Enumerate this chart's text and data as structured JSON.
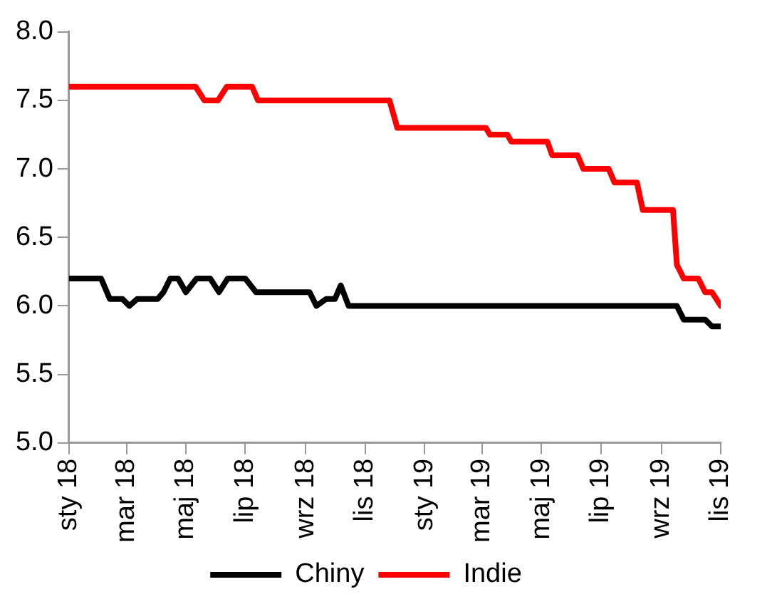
{
  "chart_data": {
    "type": "line",
    "xlim": [
      "2018-01-01",
      "2019-11-01"
    ],
    "xticks": [
      {
        "value": "2018-01-01",
        "label": "sty 18"
      },
      {
        "value": "2018-03-01",
        "label": "mar 18"
      },
      {
        "value": "2018-05-01",
        "label": "maj 18"
      },
      {
        "value": "2018-07-01",
        "label": "lip 18"
      },
      {
        "value": "2018-09-01",
        "label": "wrz 18"
      },
      {
        "value": "2018-11-01",
        "label": "lis 18"
      },
      {
        "value": "2019-01-01",
        "label": "sty 19"
      },
      {
        "value": "2019-03-01",
        "label": "mar 19"
      },
      {
        "value": "2019-05-01",
        "label": "maj 19"
      },
      {
        "value": "2019-07-01",
        "label": "lip 19"
      },
      {
        "value": "2019-09-01",
        "label": "wrz 19"
      },
      {
        "value": "2019-11-01",
        "label": "lis 19"
      }
    ],
    "ylim": [
      5,
      8
    ],
    "yticks": [
      {
        "value": 5,
        "label": "5.0"
      },
      {
        "value": 5.5,
        "label": "5.5"
      },
      {
        "value": 6,
        "label": "6.0"
      },
      {
        "value": 6.5,
        "label": "6.5"
      },
      {
        "value": 7,
        "label": "7.0"
      },
      {
        "value": 7.5,
        "label": "7.5"
      },
      {
        "value": 8,
        "label": "8.0"
      }
    ],
    "grid": false,
    "legend": "bottom",
    "marker": "none",
    "line_style": "solid",
    "series": [
      {
        "name": "Chiny",
        "color": "#000000",
        "x": [
          "2018-01-01",
          "2018-02-03",
          "2018-02-12",
          "2018-02-25",
          "2018-03-04",
          "2018-03-12",
          "2018-04-02",
          "2018-04-08",
          "2018-04-15",
          "2018-04-23",
          "2018-05-01",
          "2018-05-12",
          "2018-05-26",
          "2018-06-04",
          "2018-06-13",
          "2018-07-01",
          "2018-07-12",
          "2018-09-05",
          "2018-09-12",
          "2018-09-22",
          "2018-10-01",
          "2018-10-07",
          "2018-10-15",
          "2019-09-17",
          "2019-09-24",
          "2019-10-16",
          "2019-10-23",
          "2019-11-01"
        ],
        "values": [
          6.2,
          6.2,
          6.05,
          6.05,
          6.0,
          6.05,
          6.05,
          6.1,
          6.2,
          6.2,
          6.1,
          6.2,
          6.2,
          6.1,
          6.2,
          6.2,
          6.1,
          6.1,
          6.0,
          6.05,
          6.05,
          6.15,
          6.0,
          6.0,
          5.9,
          5.9,
          5.85,
          5.85
        ]
      },
      {
        "name": "Indie",
        "color": "#ff0000",
        "x": [
          "2018-01-01",
          "2018-05-11",
          "2018-05-20",
          "2018-06-03",
          "2018-06-12",
          "2018-07-08",
          "2018-07-14",
          "2018-11-26",
          "2018-12-04",
          "2019-03-05",
          "2019-03-09",
          "2019-03-27",
          "2019-03-31",
          "2019-05-07",
          "2019-05-12",
          "2019-06-07",
          "2019-06-13",
          "2019-07-09",
          "2019-07-15",
          "2019-08-07",
          "2019-08-13",
          "2019-09-13",
          "2019-09-17",
          "2019-09-24",
          "2019-10-09",
          "2019-10-16",
          "2019-10-23",
          "2019-11-01"
        ],
        "values": [
          7.6,
          7.6,
          7.5,
          7.5,
          7.6,
          7.6,
          7.5,
          7.5,
          7.3,
          7.3,
          7.25,
          7.25,
          7.2,
          7.2,
          7.1,
          7.1,
          7.0,
          7.0,
          6.9,
          6.9,
          6.7,
          6.7,
          6.3,
          6.2,
          6.2,
          6.1,
          6.1,
          6.0
        ]
      }
    ]
  }
}
